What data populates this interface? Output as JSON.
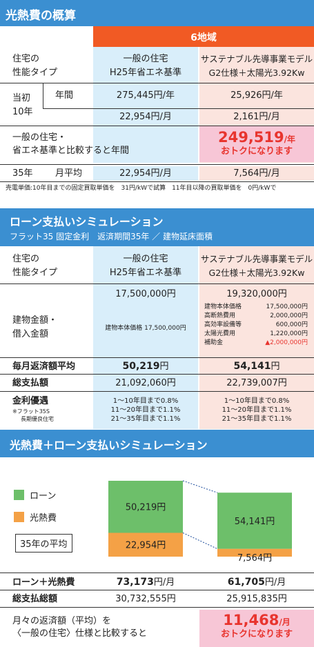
{
  "s1": {
    "title": "光熱費の概算",
    "region": "6地域",
    "type_label_1": "住宅の",
    "type_label_2": "性能タイプ",
    "col1_1": "一般の住宅",
    "col1_2": "H25年省エネ基準",
    "col2_1": "サステナブル先導事業モデル",
    "col2_2": "G2仕様＋太陽光3.92Kw",
    "initial_1": "当初",
    "initial_2": "10年",
    "annual": "年間",
    "c1_year": "275,445円/年",
    "c2_year": "25,926円/年",
    "c1_month": "22,954円/月",
    "c2_month": "2,161円/月",
    "compare_1": "一般の住宅・",
    "compare_2": "省エネ基準と比較すると年間",
    "saving_num": "249,519",
    "saving_unit": "/年",
    "saving_text": "おトクになります",
    "y35": "35年",
    "monthly_avg": "月平均",
    "c1_35": "22,954円/月",
    "c2_35": "7,564円/月",
    "note": "売電単価:10年目までの固定買取単価を　31円/kWで試算　11年目以降の買取単価を　0円/kWで"
  },
  "s2": {
    "title": "ローン支払いシミュレーション",
    "subtitle": "フラット35 固定金利　返済期間35年 ／ 建物延床面積",
    "type_label_1": "住宅の",
    "type_label_2": "性能タイプ",
    "col1_1": "一般の住宅",
    "col1_2": "H25年省エネ基準",
    "col2_1": "サステナブル先導事業モデル",
    "col2_2": "G2仕様＋太陽光3.92Kw",
    "amount_label_1": "建物金額・",
    "amount_label_2": "借入金額",
    "c1_amount": "17,500,000円",
    "c1_detail": "建物本体価格 17,500,000円",
    "c2_amount": "19,320,000円",
    "c2_details": [
      {
        "label": "建物本体価格",
        "value": "17,500,000円"
      },
      {
        "label": "高断熱費用",
        "value": "2,000,000円"
      },
      {
        "label": "高効率設備等",
        "value": "600,000円"
      },
      {
        "label": "太陽光費用",
        "value": "1,220,000円"
      },
      {
        "label": "補助金",
        "value": "▲2,000,000円"
      }
    ],
    "monthly_label": "毎月返済額平均",
    "c1_monthly_num": "50,219",
    "c2_monthly_num": "54,141",
    "yen": "円",
    "total_label": "総支払額",
    "c1_total": "21,092,060円",
    "c2_total": "22,739,007円",
    "rate_label": "金利優遇",
    "rate_note_1": "※フラット35S",
    "rate_note_2": "長期優良住宅",
    "c1_rates": [
      "1～10年目まで0.8%",
      "11～20年目まで1.1%",
      "21～35年目まで1.1%"
    ],
    "c2_rates": [
      "1～10年目まで0.8%",
      "11～20年目まで1.1%",
      "21～35年目まで1.1%"
    ]
  },
  "s3": {
    "title": "光熱費＋ローン支払いシミュレーション",
    "legend_loan": "ローン",
    "legend_energy": "光熱費",
    "avg_label": "35年の平均",
    "sum_label": "ローン＋光熱費",
    "c1_sum_num": "73,173",
    "c2_sum_num": "61,705",
    "unit_month": "円/月",
    "grand_label": "総支払総額",
    "c1_grand": "30,732,555円",
    "c2_grand": "25,915,835円",
    "compare_1": "月々の返済額（平均）を",
    "compare_2": "〈一般の住宅〉仕様と比較すると",
    "saving_num": "11,468",
    "saving_unit": "/月",
    "saving_text": "おトクになります"
  },
  "chart_data": {
    "type": "bar",
    "stacked": true,
    "categories": [
      "一般の住宅",
      "サステナブル先導事業モデル"
    ],
    "series": [
      {
        "name": "ローン",
        "values": [
          50219,
          54141
        ],
        "labels": [
          "50,219円",
          "54,141円"
        ],
        "color": "#6dbf6a"
      },
      {
        "name": "光熱費",
        "values": [
          22954,
          7564
        ],
        "labels": [
          "22,954円",
          "7,564円"
        ],
        "color": "#f4a146"
      }
    ]
  },
  "colors": {
    "header": "#3b8fd1",
    "orange": "#f15a24",
    "blue": "#d9eefa",
    "pink": "#fbe4de",
    "accent": "#e8342e"
  }
}
